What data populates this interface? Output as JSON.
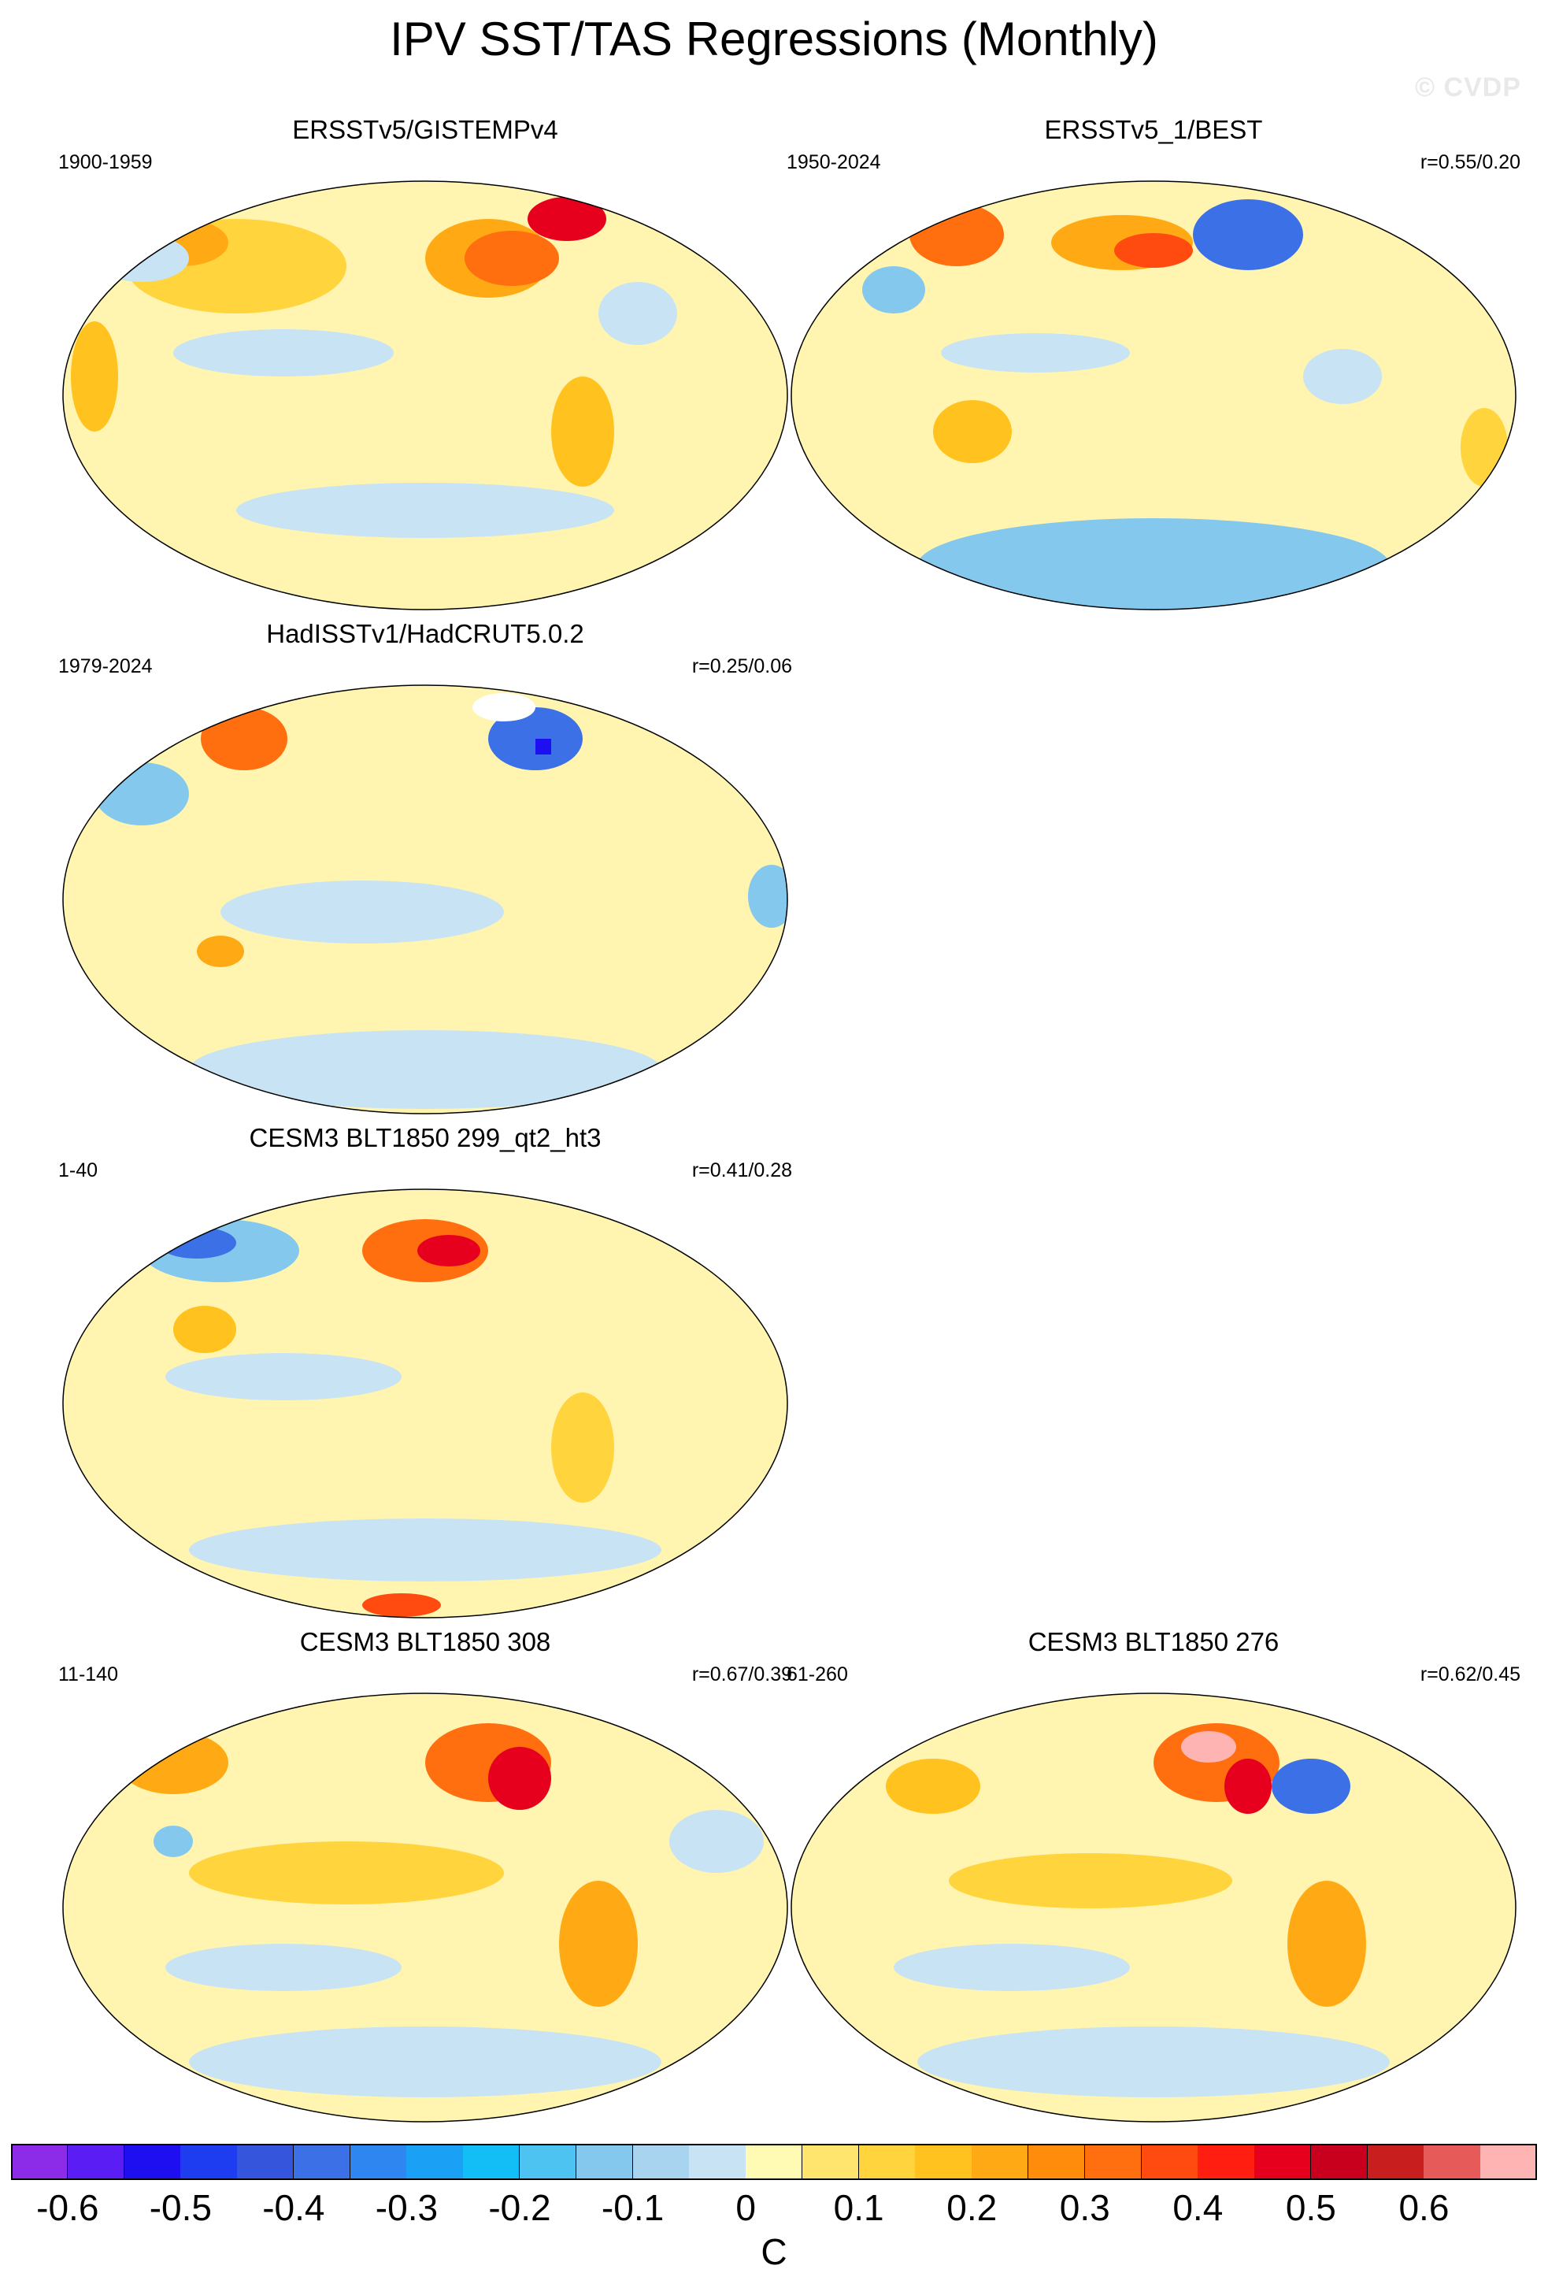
{
  "figure": {
    "title": "IPV SST/TAS Regressions (Monthly)",
    "watermark": "© CVDP"
  },
  "panels": [
    {
      "title": "ERSSTv5/GISTEMPv4",
      "period": "1900-1959",
      "corr": ""
    },
    {
      "title": "ERSSTv5_1/BEST",
      "period": "1950-2024",
      "corr": "r=0.55/0.20"
    },
    {
      "title": "HadISSTv1/HadCRUT5.0.2",
      "period": "1979-2024",
      "corr": "r=0.25/0.06"
    },
    {
      "title": "CESM3 BLT1850 299_qt2_ht3",
      "period": "1-40",
      "corr": "r=0.41/0.28"
    },
    {
      "title": "CESM3 BLT1850 308",
      "period": "11-140",
      "corr": "r=0.67/0.39"
    },
    {
      "title": "CESM3 BLT1850 276",
      "period": "61-260",
      "corr": "r=0.62/0.45"
    }
  ],
  "colorbar": {
    "unit": "C",
    "labels": [
      "-0.6",
      "-0.5",
      "-0.4",
      "-0.3",
      "-0.2",
      "-0.1",
      "0",
      "0.1",
      "0.2",
      "0.3",
      "0.4",
      "0.5",
      "0.6"
    ],
    "colors": [
      "#8c2ce8",
      "#5a1ef5",
      "#1e0ff0",
      "#1e3cf0",
      "#3455dc",
      "#3c70e6",
      "#2e86f0",
      "#1aa0f5",
      "#13bdf5",
      "#4cc3f0",
      "#84c8ee",
      "#a9d4ef",
      "#c8e3f3",
      "#fffbb5",
      "#ffe46e",
      "#ffd43c",
      "#ffc21e",
      "#ffaa14",
      "#ff8c0a",
      "#ff6e0f",
      "#ff4b0f",
      "#ff1e0f",
      "#e6001e",
      "#c8001e",
      "#c81e1e",
      "#e65a5a",
      "#ffb4b4"
    ]
  }
}
